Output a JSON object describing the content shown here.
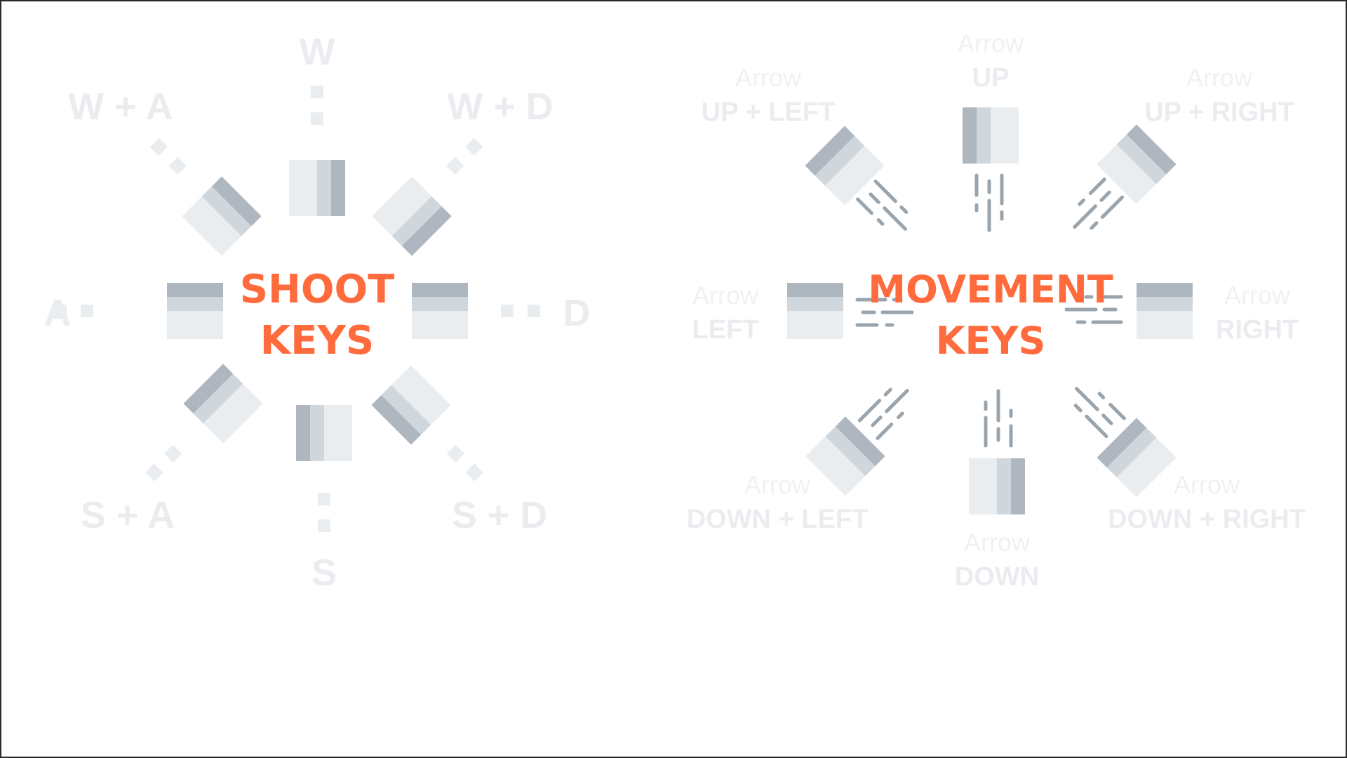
{
  "colors": {
    "accent": "#ff6b3d",
    "key_light": "#eaedf0",
    "key_mid": "#cfd6dc",
    "key_dark": "#aeb7bf",
    "label": "#eaecef",
    "motion_line": "#9aa4ac"
  },
  "shoot": {
    "title_line1": "SHOOT",
    "title_line2": "KEYS",
    "labels": {
      "w": "W",
      "wa": "W + A",
      "wd": "W + D",
      "a": "A",
      "d": "D",
      "sa": "S + A",
      "sd": "S + D",
      "s": "S"
    }
  },
  "movement": {
    "title_line1": "MOVEMENT",
    "title_line2": "KEYS",
    "labels": {
      "up": {
        "small": "Arrow",
        "big": "UP"
      },
      "up_left": {
        "small": "Arrow",
        "big": "UP + LEFT"
      },
      "up_right": {
        "small": "Arrow",
        "big": "UP + RIGHT"
      },
      "left": {
        "small": "Arrow",
        "big": "LEFT"
      },
      "right": {
        "small": "Arrow",
        "big": "RIGHT"
      },
      "down_left": {
        "small": "Arrow",
        "big": "DOWN + LEFT"
      },
      "down_right": {
        "small": "Arrow",
        "big": "DOWN + RIGHT"
      },
      "down": {
        "small": "Arrow",
        "big": "DOWN"
      }
    }
  }
}
